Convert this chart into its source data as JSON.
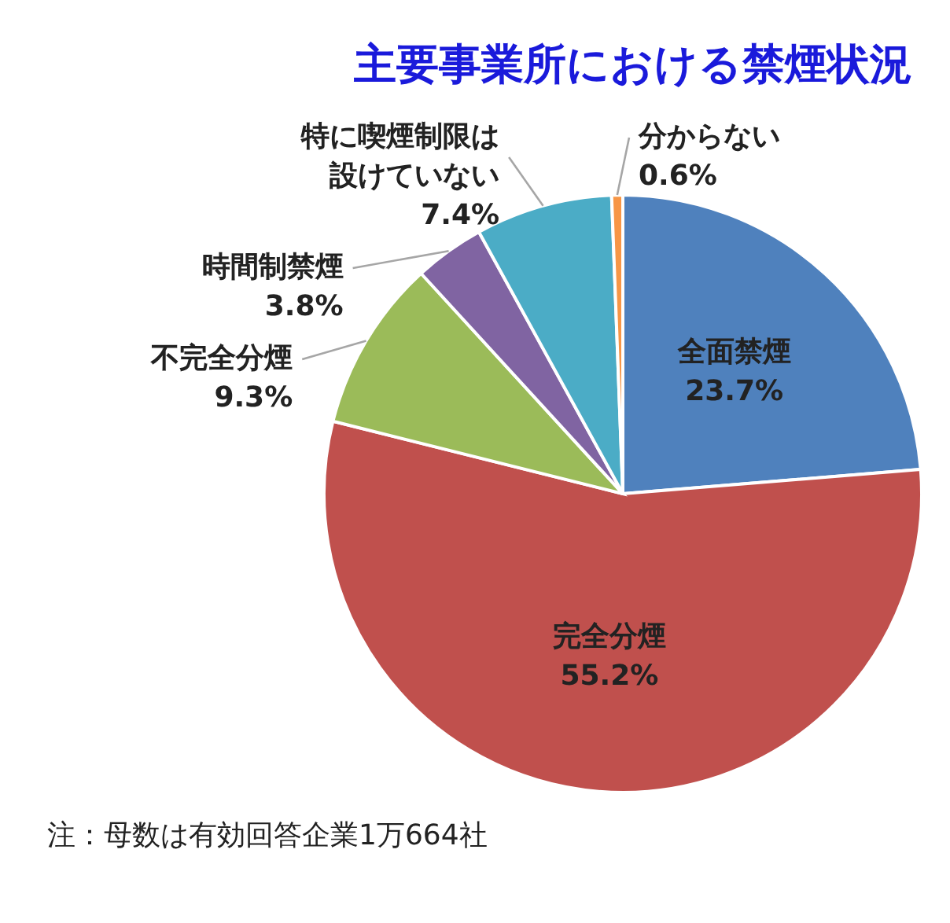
{
  "chart_data": {
    "type": "pie",
    "title": "主要事業所における禁煙状況",
    "categories": [
      "全面禁煙",
      "完全分煙",
      "不完全分煙",
      "時間制禁煙",
      "特に喫煙制限は設けていない",
      "分からない"
    ],
    "values": [
      23.7,
      55.2,
      9.3,
      3.8,
      7.4,
      0.6
    ],
    "colors": [
      "#4f81bd",
      "#c0504d",
      "#9bbb59",
      "#8064a2",
      "#4bacc6",
      "#f79646"
    ],
    "value_labels": [
      "23.7%",
      "55.2%",
      "9.3%",
      "3.8%",
      "7.4%",
      "0.6%"
    ],
    "annotations": [
      "注：母数は有効回答企業1万664社"
    ]
  }
}
